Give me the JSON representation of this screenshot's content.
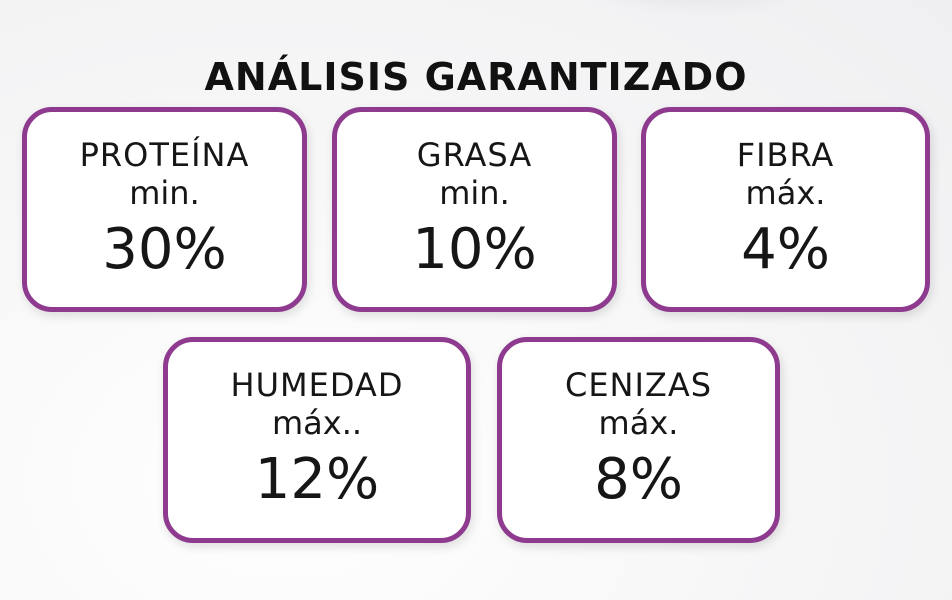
{
  "title": "ANÁLISIS GARANTIZADO",
  "accent_color": "#8e3a8f",
  "cards": [
    {
      "name": "PROTEÍNA",
      "qualifier": "min.",
      "value": "30%"
    },
    {
      "name": "GRASA",
      "qualifier": "min.",
      "value": "10%"
    },
    {
      "name": "FIBRA",
      "qualifier": "máx.",
      "value": "4%"
    },
    {
      "name": "HUMEDAD",
      "qualifier": "máx..",
      "value": "12%"
    },
    {
      "name": "CENIZAS",
      "qualifier": "máx.",
      "value": "8%"
    }
  ]
}
